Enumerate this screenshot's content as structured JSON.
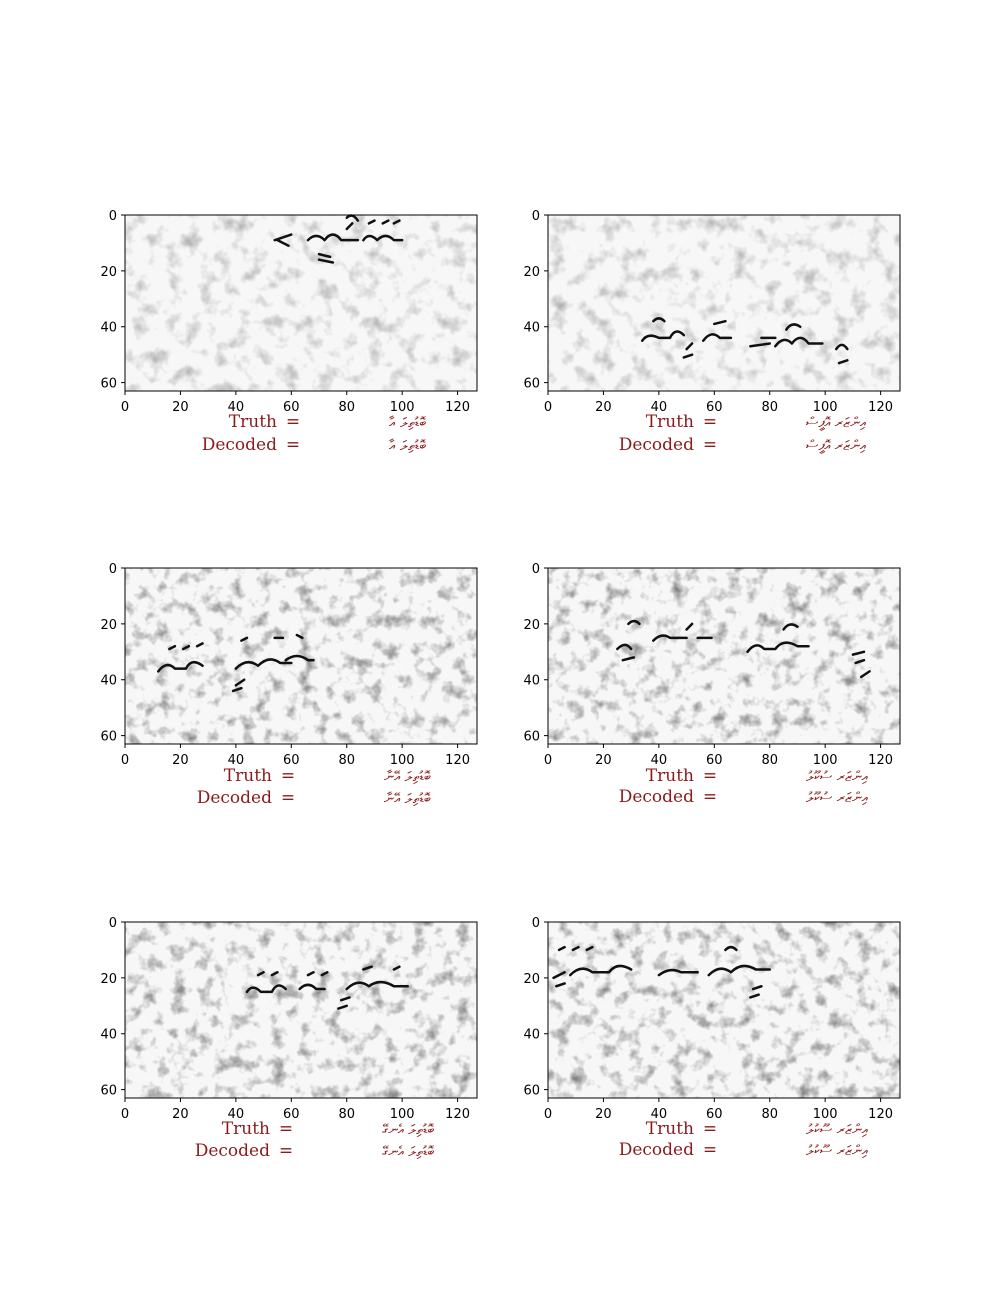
{
  "chart_data": [
    {
      "type": "image",
      "xlim": [
        0,
        127
      ],
      "ylim": [
        63,
        0
      ],
      "xticks": [
        0,
        20,
        40,
        60,
        80,
        100,
        120
      ],
      "yticks": [
        0,
        20,
        40,
        60
      ],
      "truth_label": "Truth",
      "decoded_label": "Decoded",
      "eq": "=",
      "truth": "ބޮޑުތިލަ އާ",
      "decoded": "ބޮޑުތިލަ އާ"
    },
    {
      "type": "image",
      "xlim": [
        0,
        127
      ],
      "ylim": [
        63,
        0
      ],
      "xticks": [
        0,
        20,
        40,
        60,
        80,
        100,
        120
      ],
      "yticks": [
        0,
        20,
        40,
        60
      ],
      "truth_label": "Truth",
      "decoded_label": "Decoded",
      "eq": "=",
      "truth": "އިންޒަރ އޮފީސް",
      "decoded": "އިންޒަރ އޮފީސް"
    },
    {
      "type": "image",
      "xlim": [
        0,
        127
      ],
      "ylim": [
        63,
        0
      ],
      "xticks": [
        0,
        20,
        40,
        60,
        80,
        100,
        120
      ],
      "yticks": [
        0,
        20,
        40,
        60
      ],
      "truth_label": "Truth",
      "decoded_label": "Decoded",
      "eq": "=",
      "truth": "ބޮޑުތިލަ އޭނާ",
      "decoded": "ބޮޑުތިލަ އޭނާ"
    },
    {
      "type": "image",
      "xlim": [
        0,
        127
      ],
      "ylim": [
        63,
        0
      ],
      "xticks": [
        0,
        20,
        40,
        60,
        80,
        100,
        120
      ],
      "yticks": [
        0,
        20,
        40,
        60
      ],
      "truth_label": "Truth",
      "decoded_label": "Decoded",
      "eq": "=",
      "truth": "އިންޒަރ ސުކޫލު",
      "decoded": "އިންޒަރ ސުކޫލު"
    },
    {
      "type": "image",
      "xlim": [
        0,
        127
      ],
      "ylim": [
        63,
        0
      ],
      "xticks": [
        0,
        20,
        40,
        60,
        80,
        100,
        120
      ],
      "yticks": [
        0,
        20,
        40,
        60
      ],
      "truth_label": "Truth",
      "decoded_label": "Decoded",
      "eq": "=",
      "truth": "ބޮޑުތިލަ އެނގޭ",
      "decoded": "ބޮޑުތިލަ އެނގޭ"
    },
    {
      "type": "image",
      "xlim": [
        0,
        127
      ],
      "ylim": [
        63,
        0
      ],
      "xticks": [
        0,
        20,
        40,
        60,
        80,
        100,
        120
      ],
      "yticks": [
        0,
        20,
        40,
        60
      ],
      "truth_label": "Truth",
      "decoded_label": "Decoded",
      "eq": "=",
      "truth": "އިންޒަރ ސޫކުލު",
      "decoded": "އިންޒަރ ސޫކުލު"
    }
  ]
}
